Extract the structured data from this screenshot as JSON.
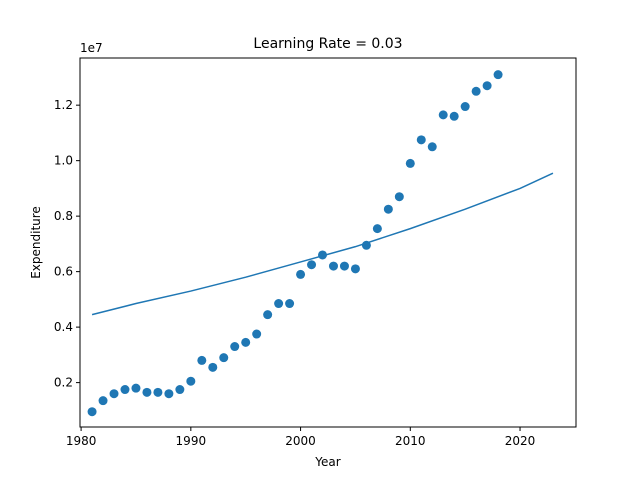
{
  "chart_data": {
    "type": "scatter",
    "title": "Learning Rate = 0.03",
    "xlabel": "Year",
    "ylabel": "Expenditure",
    "y_offset_text": "1e7",
    "y_scale_factor": 10000000,
    "xlim": [
      1979.9,
      2025.1
    ],
    "ylim": [
      400000,
      13700000
    ],
    "x_ticks": [
      1980,
      1990,
      2000,
      2010,
      2020
    ],
    "x_tick_labels": [
      "1980",
      "1990",
      "2000",
      "2010",
      "2020"
    ],
    "y_ticks": [
      2000000,
      4000000,
      6000000,
      8000000,
      10000000,
      12000000
    ],
    "y_tick_labels": [
      "0.2",
      "0.4",
      "0.6",
      "0.8",
      "1.0",
      "1.2"
    ],
    "grid": false,
    "legend": "none",
    "colors": {
      "series": "#1f77b4",
      "axes": "#000000",
      "background": "#ffffff"
    },
    "series": [
      {
        "kind": "scatter",
        "x": [
          1981,
          1982,
          1983,
          1984,
          1985,
          1986,
          1987,
          1988,
          1989,
          1990,
          1991,
          1992,
          1993,
          1994,
          1995,
          1996,
          1997,
          1998,
          1999,
          2000,
          2001,
          2002,
          2003,
          2004,
          2005,
          2006,
          2007,
          2008,
          2009,
          2010,
          2011,
          2012,
          2013,
          2014,
          2015,
          2016,
          2017,
          2018
        ],
        "y": [
          950000,
          1350000,
          1600000,
          1750000,
          1800000,
          1650000,
          1650000,
          1600000,
          1750000,
          2050000,
          2800000,
          2550000,
          2900000,
          3300000,
          3450000,
          3750000,
          4450000,
          4850000,
          4850000,
          5900000,
          6250000,
          6600000,
          6200000,
          6200000,
          6100000,
          6950000,
          7550000,
          8250000,
          8700000,
          9900000,
          10750000,
          10500000,
          11650000,
          11600000,
          11950000,
          12500000,
          12700000,
          13100000
        ]
      },
      {
        "kind": "line",
        "x": [
          1981,
          1985,
          1990,
          1995,
          2000,
          2005,
          2010,
          2015,
          2020,
          2023
        ],
        "y": [
          4450000,
          4850000,
          5300000,
          5800000,
          6350000,
          6900000,
          7550000,
          8250000,
          9000000,
          9550000
        ]
      }
    ]
  }
}
